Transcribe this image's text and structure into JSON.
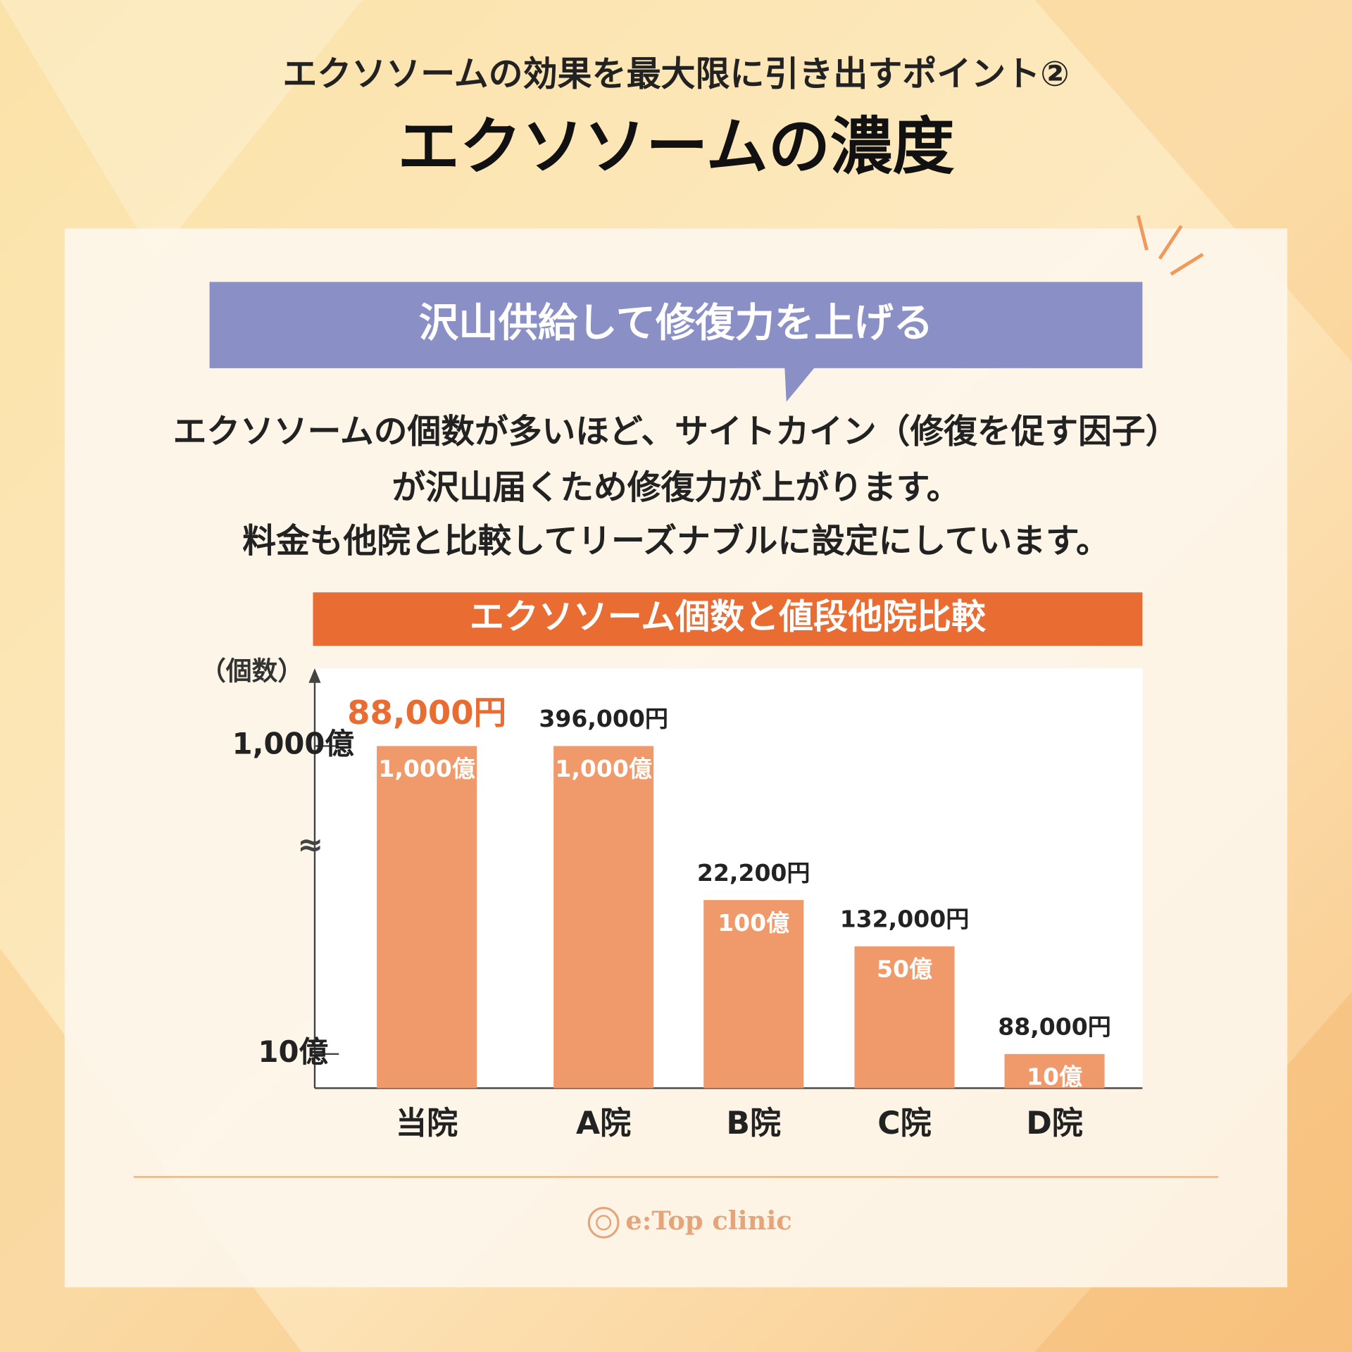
{
  "header": {
    "subtitle": "エクソソームの効果を最大限に引き出すポイント②",
    "title": "エクソソームの濃度"
  },
  "callout": "沢山供給して修復力を上げる",
  "body": [
    "エクソソームの個数が多いほど、サイトカイン（修復を促す因子）",
    "が沢山届くため修復力が上がります。",
    "料金も他院と比較してリーズナブルに設定にしています。"
  ],
  "chart_data": {
    "type": "bar",
    "title": "エクソソーム個数と値段他院比較",
    "y_label": "（個数）",
    "categories": [
      "当院",
      "A院",
      "B院",
      "C院",
      "D院"
    ],
    "values": [
      1000,
      1000,
      100,
      50,
      10
    ],
    "value_labels": [
      "1,000億",
      "1,000億",
      "100億",
      "50億",
      "10億"
    ],
    "price_labels": [
      "88,000円",
      "396,000円",
      "22,200円",
      "132,000円",
      "88,000円"
    ],
    "color": "#f0996a",
    "log_scale": true,
    "ylim": [
      6,
      3000
    ],
    "yticks": [
      {
        "value": 10,
        "label": "10億"
      },
      {
        "value": 1000,
        "label": "1,000億"
      }
    ],
    "axis_break_symbol": "≈"
  },
  "footer": {
    "logo": "e:Top clinic"
  }
}
